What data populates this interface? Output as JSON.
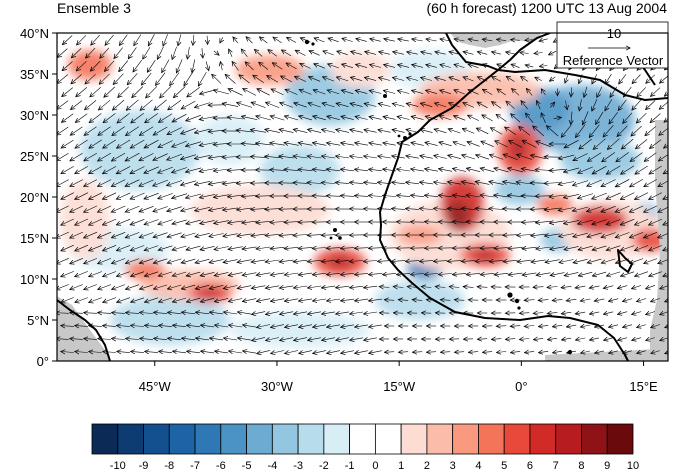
{
  "header": {
    "left_title": "Ensemble 3",
    "right_title": "(60 h forecast) 1200 UTC 13 Aug 2004"
  },
  "map": {
    "lat_range": [
      0,
      40
    ],
    "lon_range": [
      -57,
      18
    ],
    "lat_ticks": [
      "0°",
      "5°N",
      "10°N",
      "15°N",
      "20°N",
      "25°N",
      "30°N",
      "35°N",
      "40°N"
    ],
    "lon_ticks": [
      "45°W",
      "30°W",
      "15°W",
      "0°",
      "15°E"
    ],
    "reference_vector": {
      "magnitude": "10",
      "label": "Reference Vector"
    },
    "land_fill_color": "#c8c8c8",
    "positive_color": "#d7301f",
    "negative_color": "#2166ac"
  },
  "colorbar": {
    "labels": [
      "-10",
      "-9",
      "-8",
      "-7",
      "-6",
      "-5",
      "-4",
      "-3",
      "-2",
      "-1",
      "0",
      "1",
      "2",
      "3",
      "4",
      "5",
      "6",
      "7",
      "8",
      "9",
      "10"
    ],
    "colors": [
      "#0b2a55",
      "#0d3c73",
      "#13508f",
      "#1d64a6",
      "#2f78b6",
      "#4c93c5",
      "#6eabd3",
      "#93c6e0",
      "#b7dcec",
      "#d8eef7",
      "#ffffff",
      "#ffffff",
      "#fcdcd3",
      "#fbbcaa",
      "#f99a80",
      "#f4745a",
      "#e8493a",
      "#d22a27",
      "#b71c20",
      "#8f1216",
      "#6a0a0c"
    ]
  }
}
